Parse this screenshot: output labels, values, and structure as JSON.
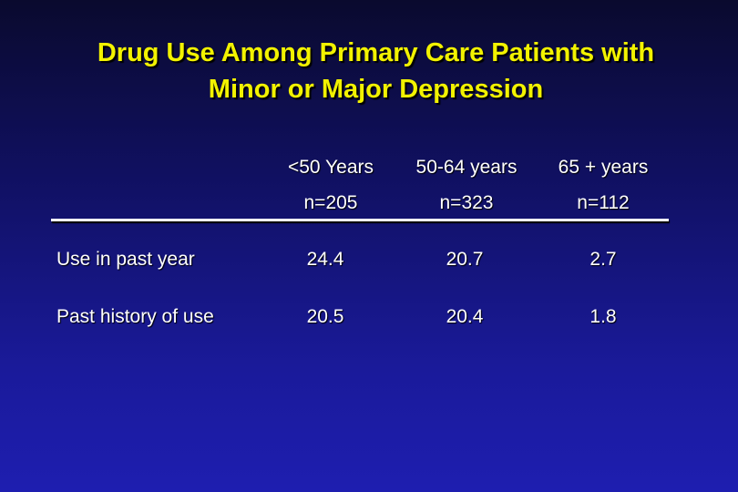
{
  "slide": {
    "title_lines": [
      "Drug Use Among Primary Care Patients with",
      "Minor or Major Depression"
    ]
  },
  "table": {
    "columns": [
      {
        "label": "<50 Years",
        "n": "n=205"
      },
      {
        "label": "50-64 years",
        "n": "n=323"
      },
      {
        "label": "65 + years",
        "n": "n=112"
      }
    ],
    "rows": [
      {
        "label": "Use in past year",
        "values": [
          "24.4",
          "20.7",
          "2.7"
        ]
      },
      {
        "label": "Past history of use",
        "values": [
          "20.5",
          "20.4",
          "1.8"
        ]
      }
    ]
  },
  "colors": {
    "title": "#f2f200",
    "text": "#ffffff",
    "background_top": "#0a0a2e",
    "background_bottom": "#1e1eb0"
  }
}
